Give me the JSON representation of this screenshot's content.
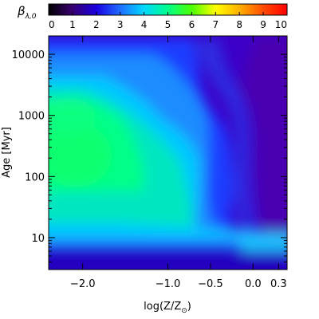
{
  "chart_data": {
    "type": "heatmap",
    "colorbar": {
      "label": "β",
      "label_sub": "λ,0",
      "range": [
        0,
        10
      ],
      "ticks": [
        "0",
        "1",
        "2",
        "3",
        "4",
        "5",
        "6",
        "7",
        "8",
        "9",
        "10"
      ],
      "colormap": [
        "#000000",
        "#3a0070",
        "#1a00e0",
        "#1f6dff",
        "#00d8ff",
        "#00ff8a",
        "#4cff00",
        "#ffff00",
        "#ffb000",
        "#ff4b00",
        "#ff0000"
      ]
    },
    "x_axis": {
      "label": "log(Z/Z",
      "label_sub": "⊙",
      "label_end": ")",
      "range": [
        -2.4,
        0.4
      ],
      "ticks": [
        {
          "value": -2.0,
          "label": "−2.0"
        },
        {
          "value": -1.0,
          "label": "−1.0"
        },
        {
          "value": -0.5,
          "label": "−0.5"
        },
        {
          "value": 0.0,
          "label": "0.0"
        },
        {
          "value": 0.3,
          "label": "0.3"
        }
      ]
    },
    "y_axis": {
      "label": "Age [Myr]",
      "scale": "log",
      "range": [
        3,
        20000
      ],
      "ticks": [
        {
          "value": 10,
          "label": "10"
        },
        {
          "value": 100,
          "label": "100"
        },
        {
          "value": 1000,
          "label": "1000"
        },
        {
          "value": 10000,
          "label": "10000"
        }
      ]
    },
    "grid": false
  }
}
